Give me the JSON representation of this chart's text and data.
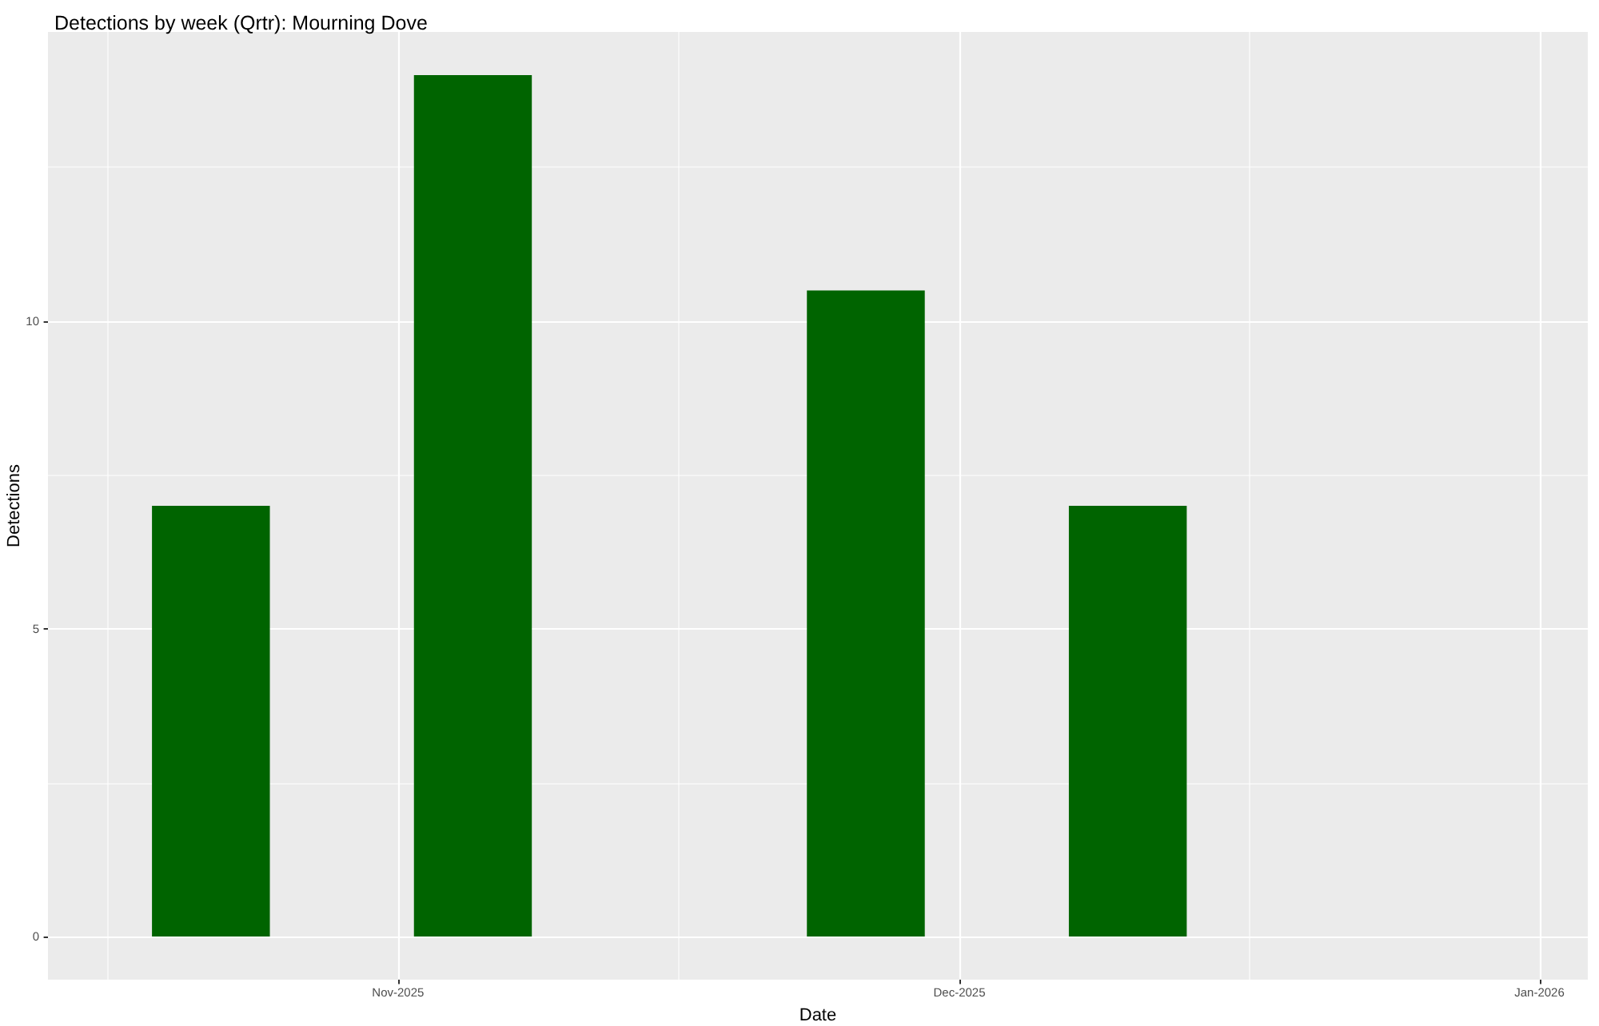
{
  "chart_data": {
    "type": "bar",
    "title": "Detections by week (Qrtr): Mourning Dove",
    "xlabel": "Date",
    "ylabel": "Detections",
    "x": [
      "2025-10-22",
      "2025-11-05",
      "2025-11-26",
      "2025-12-10"
    ],
    "values": [
      7,
      14,
      10.5,
      7
    ],
    "color": "#006400",
    "xlim": [
      "2025-10-13T07:00",
      "2026-01-03T14:00"
    ],
    "xticks": [
      {
        "value": "2025-11-01",
        "label": "Nov-2025"
      },
      {
        "value": "2025-12-01",
        "label": "Dec-2025"
      },
      {
        "value": "2026-01-01",
        "label": "Jan-2026"
      }
    ],
    "ylim": [
      -0.7,
      14.7
    ],
    "yticks": [
      0,
      5,
      10
    ],
    "grid": true
  }
}
